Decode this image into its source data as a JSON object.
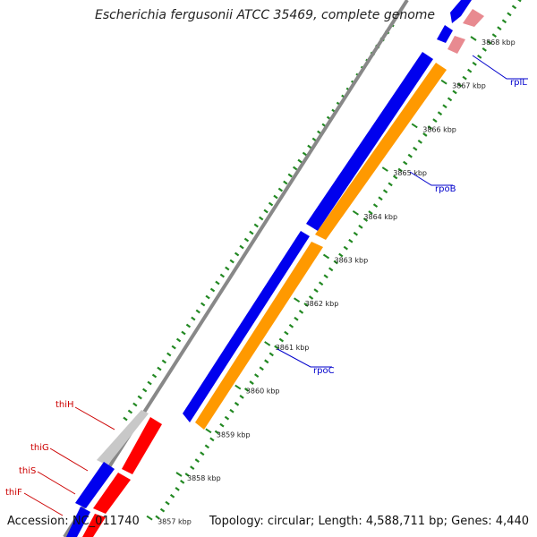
{
  "title": "Escherichia fergusonii ATCC 35469, complete genome",
  "accession_label": "Accession: NC_011740",
  "summary_label": "Topology: circular; Length: 4,588,711 bp; Genes: 4,440",
  "ticks": [
    "3868 kbp",
    "3867 kbp",
    "3866 kbp",
    "3865 kbp",
    "3864 kbp",
    "3863 kbp",
    "3862 kbp",
    "3861 kbp",
    "3860 kbp",
    "3859 kbp",
    "3858 kbp",
    "3857 kbp"
  ],
  "genes_forward": [
    "rplL",
    "rpoB",
    "rpoC"
  ],
  "genes_reverse": [
    "thiH",
    "thiG",
    "thiS",
    "thiF"
  ],
  "colors": {
    "cds_forward": "#0000ee",
    "cds_reverse": "#ff0000",
    "orange_track": "#ff9900",
    "pink_track": "#e88a90",
    "grey_track": "#c8c8c8",
    "backbone": "#888888",
    "dots": "#228822",
    "label_forward": "#0000cc",
    "label_reverse": "#cc0000"
  }
}
